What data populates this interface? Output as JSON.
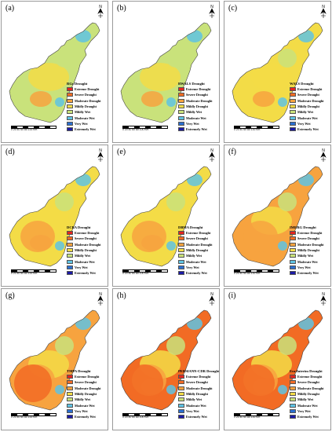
{
  "colors": {
    "extreme_drought": "#e3231f",
    "severe_drought": "#f26b24",
    "moderate_drought": "#f7a33f",
    "mildly_drought": "#f3dc47",
    "mildly_wet": "#c9e27b",
    "moderate_wet": "#5fc3e3",
    "very_wet": "#2b6fd0",
    "extremely_wet": "#1b1aa5"
  },
  "legend_items": [
    {
      "label": "Extreme Drought",
      "color": "#e3231f"
    },
    {
      "label": "Severe Drought",
      "color": "#f26b24"
    },
    {
      "label": "Moderate Drought",
      "color": "#f7a33f"
    },
    {
      "label": "Mildly Drought",
      "color": "#f3dc47"
    },
    {
      "label": "Mildly Wet",
      "color": "#c9e27b"
    },
    {
      "label": "Moderate Wet",
      "color": "#5fc3e3"
    },
    {
      "label": "Very Wet",
      "color": "#2b6fd0"
    },
    {
      "label": "Extremely Wet",
      "color": "#1b1aa5"
    }
  ],
  "panels": [
    {
      "letter": "(a)",
      "title": "RGs Drought",
      "scale": "0  20  40  60  80  100 Km",
      "dominant": "mildly_wet"
    },
    {
      "letter": "(b)",
      "title": "RWALS Drought",
      "scale": "0  20  40  60  80  100 Km",
      "dominant": "mildly_wet"
    },
    {
      "letter": "(c)",
      "title": "WALS Drought",
      "scale": "0  20  40  60  80  100 Km",
      "dominant": "mildly_drought"
    },
    {
      "letter": "(d)",
      "title": "DCBA Drought",
      "scale": "0  20  40  60  80  100 Km",
      "dominant": "mildly_drought"
    },
    {
      "letter": "(e)",
      "title": "DBMA Drought",
      "scale": "0  20  40  60  80  100 Km",
      "dominant": "mildly_drought"
    },
    {
      "letter": "(f)",
      "title": "IMERG Drought",
      "scale": "0  20  40  60  80  100 Km",
      "dominant": "moderate_drought"
    },
    {
      "letter": "(g)",
      "title": "TMPA Drought",
      "scale": "0  20  40  60  80  100 Km",
      "dominant": "moderate_drought"
    },
    {
      "letter": "(h)",
      "title": "PERSIANN-CDR Drought",
      "scale": "0  20  40  60  80  100 Km",
      "dominant": "severe_drought"
    },
    {
      "letter": "(i)",
      "title": "Era-Interim Drought",
      "scale": "0  20  40  60  80  100 Km",
      "dominant": "severe_drought"
    }
  ],
  "north_symbol": "N"
}
